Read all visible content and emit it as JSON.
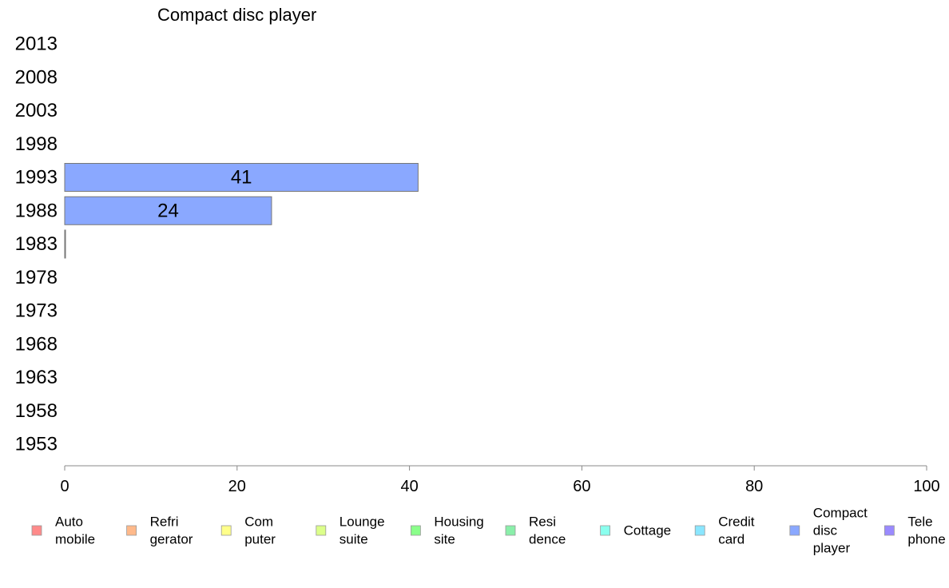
{
  "chart_data": {
    "type": "bar",
    "orientation": "horizontal",
    "title": "Compact disc player",
    "categories": [
      "2013",
      "2008",
      "2003",
      "1998",
      "1993",
      "1988",
      "1983",
      "1978",
      "1973",
      "1968",
      "1963",
      "1958",
      "1953"
    ],
    "series": [
      {
        "name": "Compact disc player",
        "color": "#8aa8ff",
        "values": [
          null,
          null,
          null,
          null,
          41,
          24,
          0,
          null,
          null,
          null,
          null,
          null,
          null
        ],
        "data_labels": [
          "",
          "",
          "",
          "",
          "41",
          "24",
          "",
          "",
          "",
          "",
          "",
          "",
          ""
        ]
      }
    ],
    "xlim": [
      0,
      100
    ],
    "xticks": [
      "0",
      "20",
      "40",
      "60",
      "80",
      "100"
    ],
    "xlabel": "",
    "ylabel": "",
    "grid": false,
    "legend_position": "bottom",
    "legend": [
      {
        "lines": [
          "Auto",
          "mobile"
        ],
        "color": "#ff8a8a"
      },
      {
        "lines": [
          "Refri",
          "gerator"
        ],
        "color": "#ffb98a"
      },
      {
        "lines": [
          "Com",
          "puter"
        ],
        "color": "#ffff8a"
      },
      {
        "lines": [
          "Lounge",
          "suite"
        ],
        "color": "#dcff8a"
      },
      {
        "lines": [
          "Housing",
          "site"
        ],
        "color": "#8aff8a"
      },
      {
        "lines": [
          "Resi",
          "dence"
        ],
        "color": "#8aefaa"
      },
      {
        "lines": [
          "Cottage"
        ],
        "color": "#8affee"
      },
      {
        "lines": [
          "Credit",
          "card"
        ],
        "color": "#8ae6ff"
      },
      {
        "lines": [
          "Compact",
          "disc",
          "player"
        ],
        "color": "#8aa8ff"
      },
      {
        "lines": [
          "Tele",
          "phone"
        ],
        "color": "#9a8aff"
      }
    ]
  }
}
